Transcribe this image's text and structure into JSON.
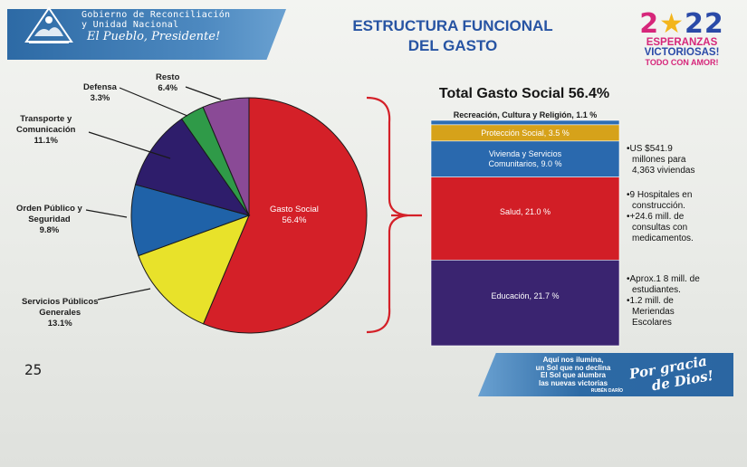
{
  "header": {
    "gov_line1": "Gobierno de Reconciliación",
    "gov_line2": "y Unidad Nacional",
    "slogan": "El Pueblo, Presidente!",
    "title_line1": "ESTRUCTURA FUNCIONAL",
    "title_line2": "DEL GASTO"
  },
  "logo": {
    "year_a": "2",
    "year_b": "0",
    "year_c": "22",
    "line1": "ESPERANZAS",
    "line2": "VICTORIOSAS!",
    "line3": "TODO CON AMOR!"
  },
  "chart_data": [
    {
      "type": "pie",
      "slices": [
        {
          "name": "Gasto Social",
          "value_label": "56.4%",
          "value": 56.4,
          "color": "#d42028"
        },
        {
          "name": "Servicios Públicos Generales",
          "value_label": "13.1%",
          "value": 13.1,
          "color": "#e8e22a"
        },
        {
          "name": "Orden Público y Seguridad",
          "value_label": "9.8%",
          "value": 9.8,
          "color": "#1f62a8"
        },
        {
          "name": "Transporte y Comunicación",
          "value_label": "11.1%",
          "value": 11.1,
          "color": "#2e1d6b"
        },
        {
          "name": "Defensa",
          "value_label": "3.3%",
          "value": 3.3,
          "color": "#2f9a48"
        },
        {
          "name": "Resto",
          "value_label": "6.4%",
          "value": 6.4,
          "color": "#8a4a96"
        }
      ]
    },
    {
      "type": "bar",
      "title": "Total Gasto Social 56.4%",
      "stacked": true,
      "segments": [
        {
          "name": "Recreación, Cultura y Religión",
          "value_label": "1.1 %",
          "value": 1.1,
          "color": "#2d6db3"
        },
        {
          "name": "Protección Social",
          "value_label": "3.5 %",
          "value": 3.5,
          "color": "#d6a21a"
        },
        {
          "name": "Vivienda y Servicios Comunitarios",
          "value_label": "9.0 %",
          "value": 9.0,
          "color": "#2a69ae"
        },
        {
          "name": "Salud",
          "value_label": "21.0 %",
          "value": 21.0,
          "color": "#d21e26"
        },
        {
          "name": "Educación",
          "value_label": "21.7 %",
          "value": 21.7,
          "color": "#3a2470"
        }
      ]
    }
  ],
  "labels": {
    "resto": "Resto",
    "resto_v": "6.4%",
    "defensa": "Defensa",
    "defensa_v": "3.3%",
    "transporte": "Transporte y",
    "transporte2": "Comunicación",
    "transporte_v": "11.1%",
    "orden": "Orden Público y",
    "orden2": "Seguridad",
    "orden_v": "9.8%",
    "servicios": "Servicios Públicos",
    "servicios2": "Generales",
    "servicios_v": "13.1%",
    "gasto": "Gasto Social",
    "gasto_v": "56.4%"
  },
  "seg_labels": {
    "recreacion": "Recreación, Cultura y Religión, 1.1 %",
    "proteccion": "Protección Social, 3.5 %",
    "vivienda1": "Vivienda y Servicios",
    "vivienda2": "Comunitarios, 9.0 %",
    "salud": "Salud, 21.0 %",
    "educacion": "Educación, 21.7 %"
  },
  "notes": {
    "vivienda": [
      "•US $541.9",
      "millones para",
      "4,363 viviendas"
    ],
    "salud": [
      "•9 Hospitales en",
      "construcción.",
      "•+24.6 mill. de",
      "consultas con",
      "medicamentos."
    ],
    "educacion": [
      "•Aprox.1 8 mill. de",
      "estudiantes.",
      "•1.2 mill. de",
      "Meriendas",
      "Escolares"
    ]
  },
  "page_number": "25",
  "footer": {
    "line1": "Aquí nos ilumina,",
    "line2": "un Sol que no declina",
    "line3": "El Sol que alumbra",
    "line4": "las nuevas victorias",
    "signature": "RUBÉN DARÍO",
    "script1": "Por gracia",
    "script2": "de Dios!"
  },
  "colors": {
    "title": "#2754a3",
    "banner": "#2d6aa5",
    "bracket": "#d42028"
  }
}
